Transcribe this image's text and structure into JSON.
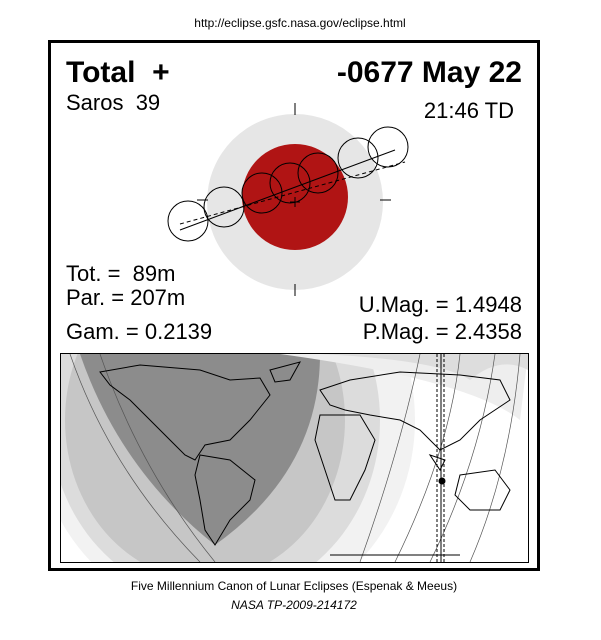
{
  "header": {
    "url": "http://eclipse.gsfc.nasa.gov/eclipse.html"
  },
  "eclipse": {
    "type": "Total  +",
    "date": "-0677 May 22",
    "saros": "Saros  39",
    "time": "21:46 TD",
    "totality": "Tot. =  89m",
    "partial": "Par. = 207m",
    "gamma": "Gam. = 0.2139",
    "umbral_magnitude": "U.Mag. = 1.4948",
    "penumbral_magnitude": "P.Mag. = 2.4358"
  },
  "footer": {
    "canon": "Five Millennium Canon of Lunar Eclipses (Espenak & Meeus)",
    "reference": "NASA TP-2009-214172"
  }
}
